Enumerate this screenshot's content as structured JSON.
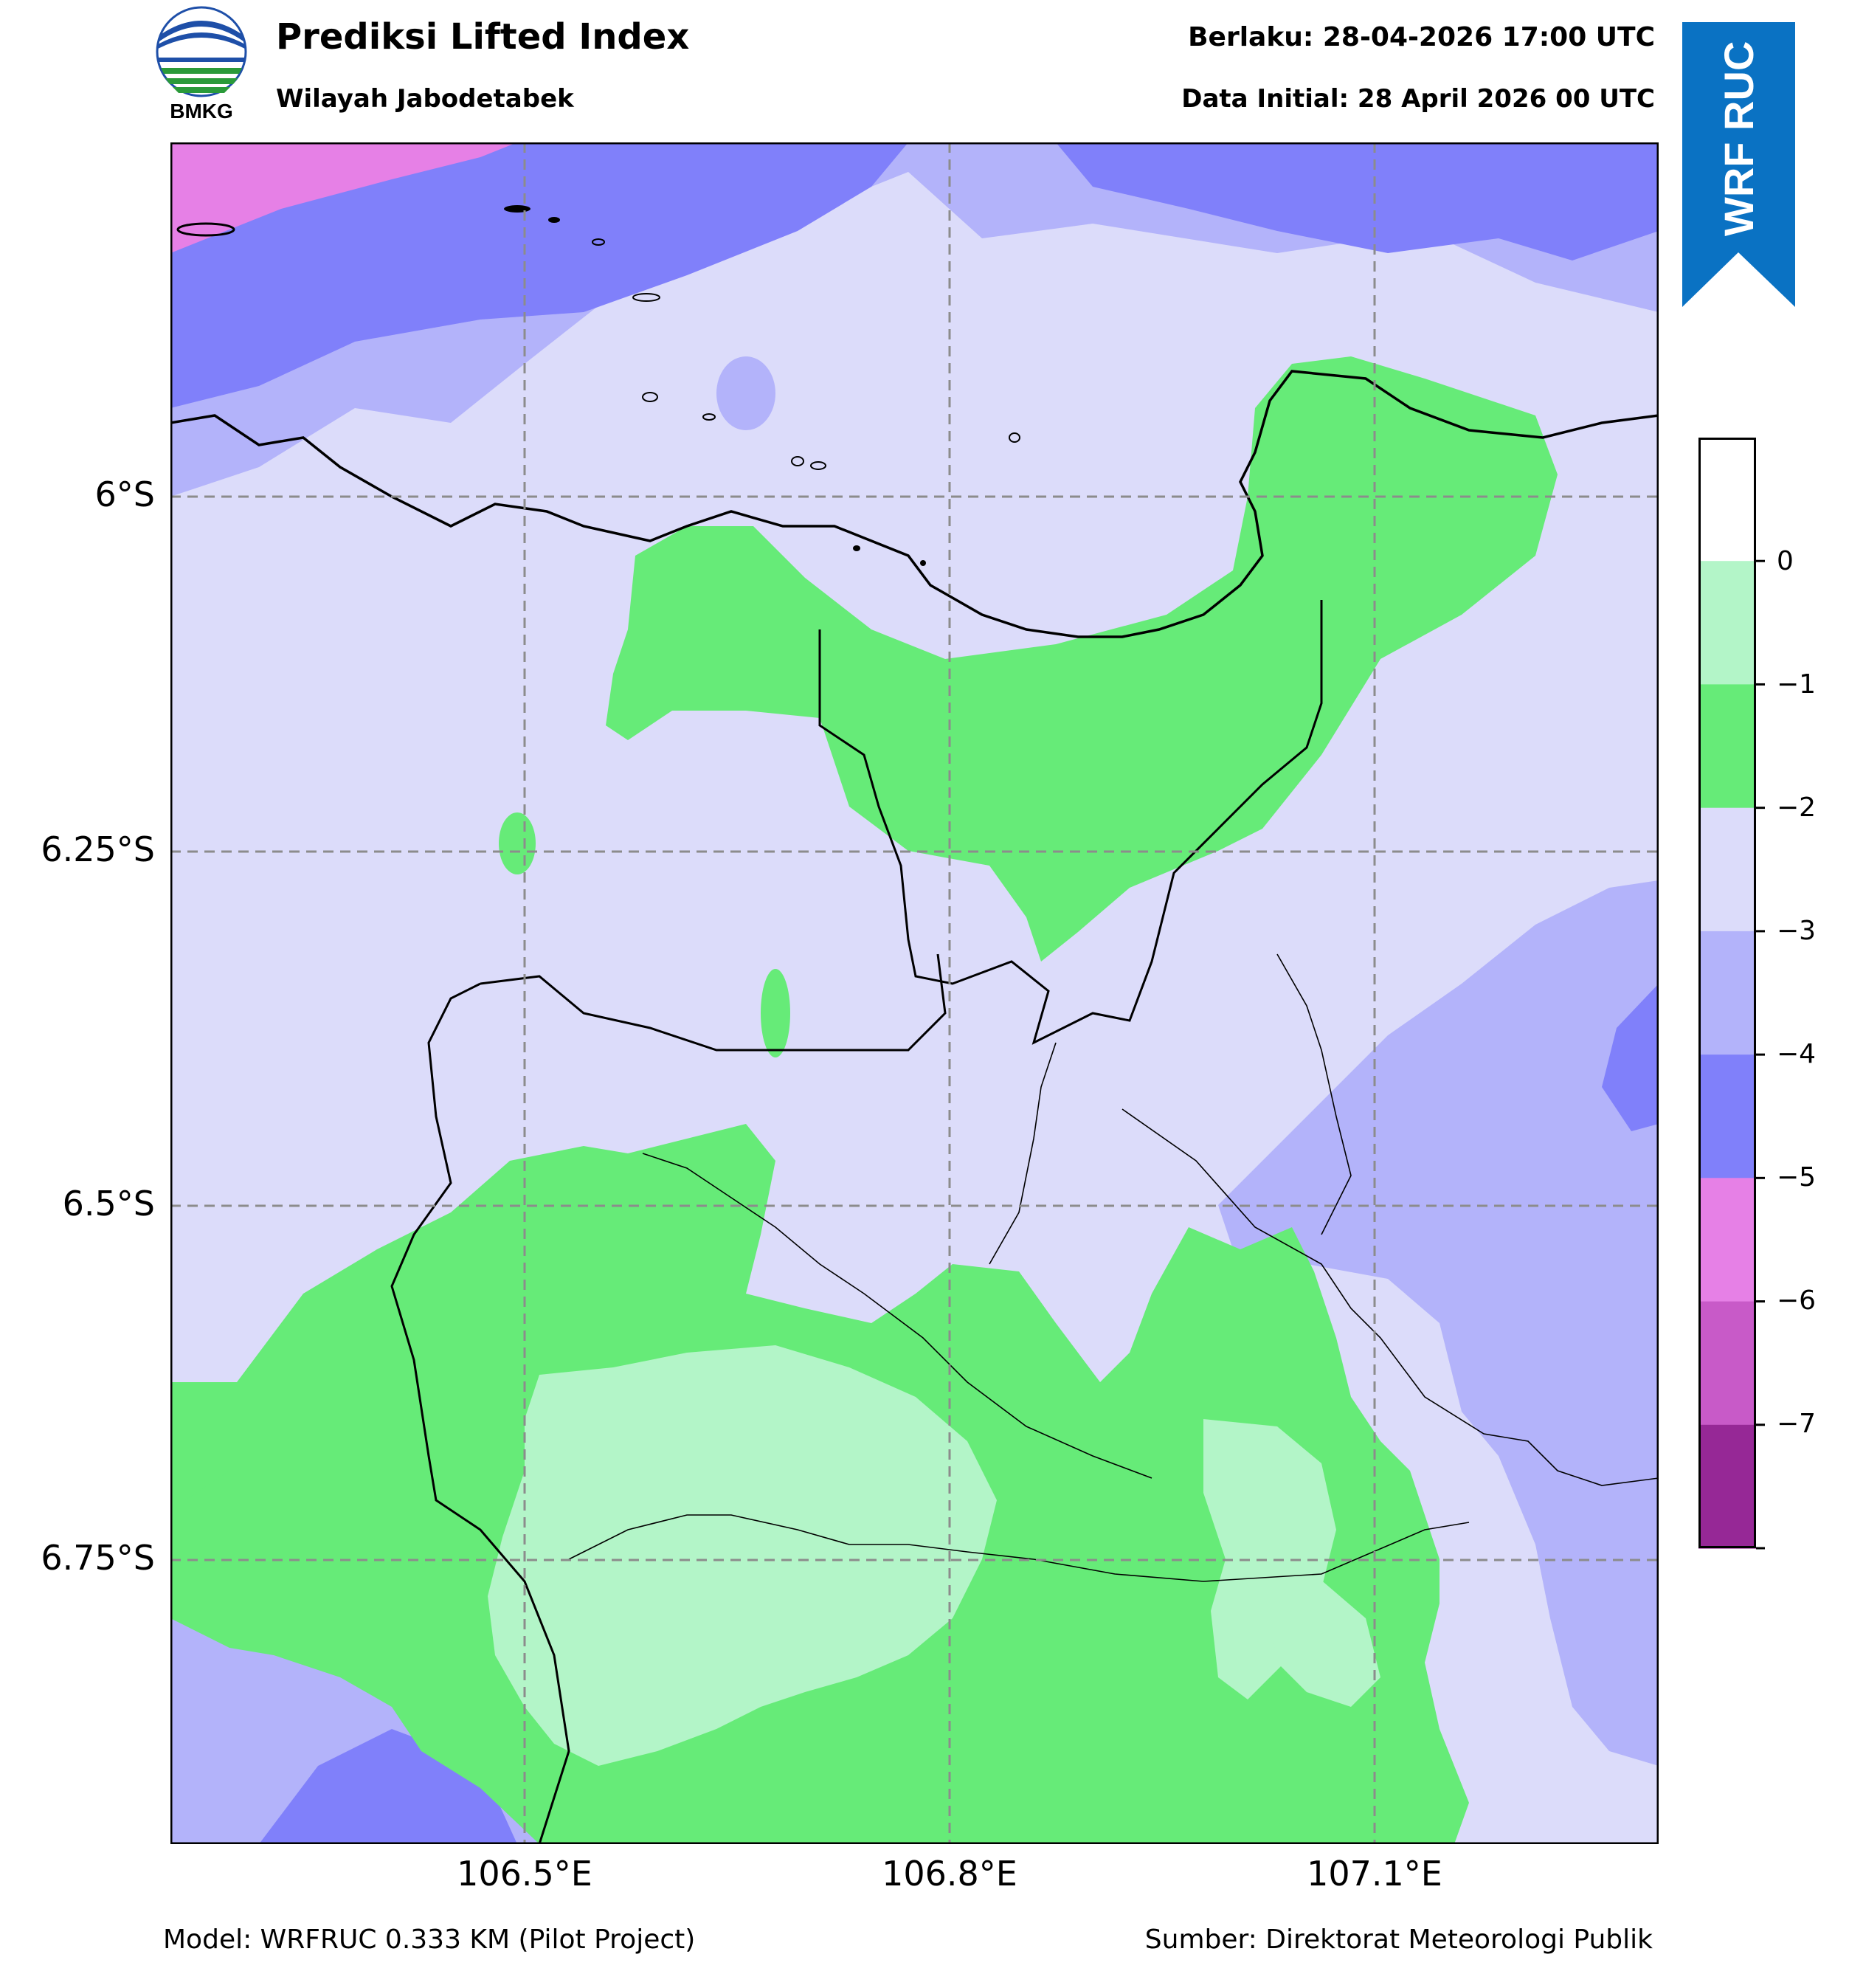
{
  "header": {
    "title": "Prediksi Lifted Index",
    "subtitle": "Wilayah Jabodetabek",
    "valid_time": "Berlaku: 28-04-2026 17:00 UTC",
    "init_time": "Data Initial: 28 April 2026 00 UTC"
  },
  "logo": {
    "text": "BMKG",
    "icon": "bmkg-logo"
  },
  "ribbon": {
    "text": "WRF RUC",
    "color": "#0a72c3"
  },
  "map": {
    "lat_ticks": [
      "6°S",
      "6.25°S",
      "6.5°S",
      "6.75°S"
    ],
    "lon_ticks": [
      "106.5°E",
      "106.8°E",
      "107.1°E"
    ],
    "gridlines": "dashed"
  },
  "colorbar": {
    "labels": [
      "0",
      "−1",
      "−2",
      "−3",
      "−4",
      "−5",
      "−6",
      "−7"
    ],
    "colors": [
      "#ffffff",
      "#b3f5c8",
      "#66eb78",
      "#dcdcfa",
      "#b3b3fa",
      "#8080fa",
      "#e680e6",
      "#c85ac8",
      "#962896"
    ],
    "levels": [
      1,
      0,
      -1,
      -2,
      -3,
      -4,
      -5,
      -6,
      -7,
      -8
    ]
  },
  "footer": {
    "model": "Model: WRFRUC 0.333 KM (Pilot Project)",
    "source": "Sumber: Direktorat Meteorologi Publik"
  }
}
